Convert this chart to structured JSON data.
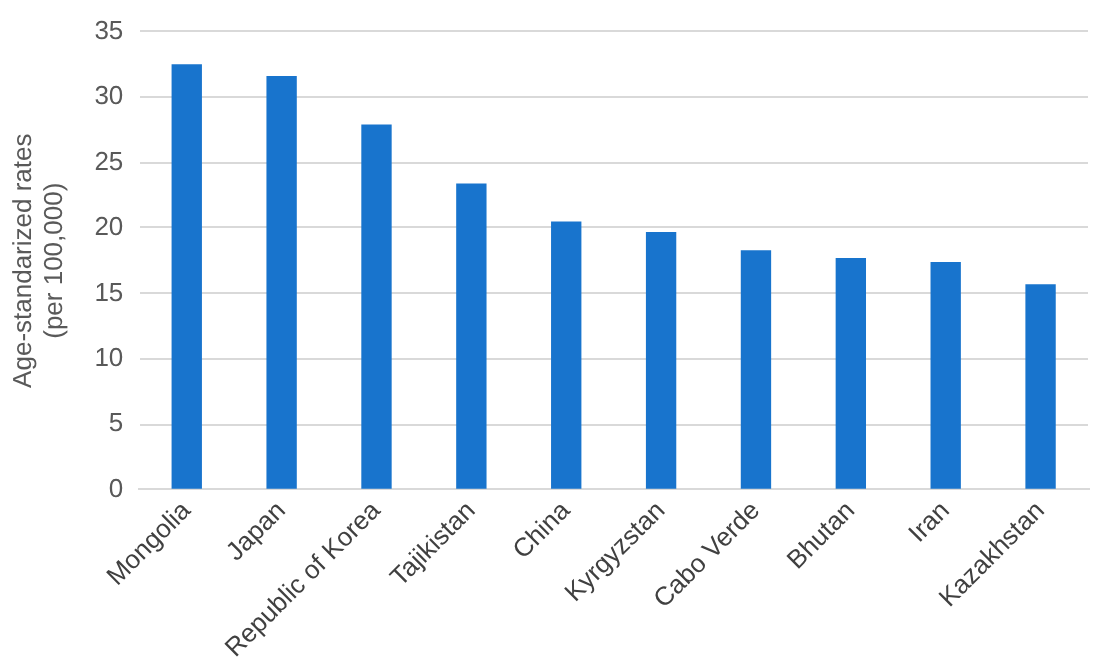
{
  "chart_data": {
    "type": "bar",
    "ylabel": "Age-standarized rates\n(per 100,000)",
    "categories": [
      "Mongolia",
      "Japan",
      "Republic of Korea",
      "Tajikistan",
      "China",
      "Kyrgyzstan",
      "Cabo Verde",
      "Bhutan",
      "Iran",
      "Kazakhstan"
    ],
    "values": [
      32.5,
      31.6,
      27.9,
      23.4,
      20.5,
      19.7,
      18.3,
      17.7,
      17.4,
      15.7
    ],
    "color": "#1874cd",
    "ylim": [
      0,
      35
    ],
    "yticks": [
      0,
      5,
      10,
      15,
      20,
      25,
      30,
      35
    ],
    "grid": "y"
  }
}
